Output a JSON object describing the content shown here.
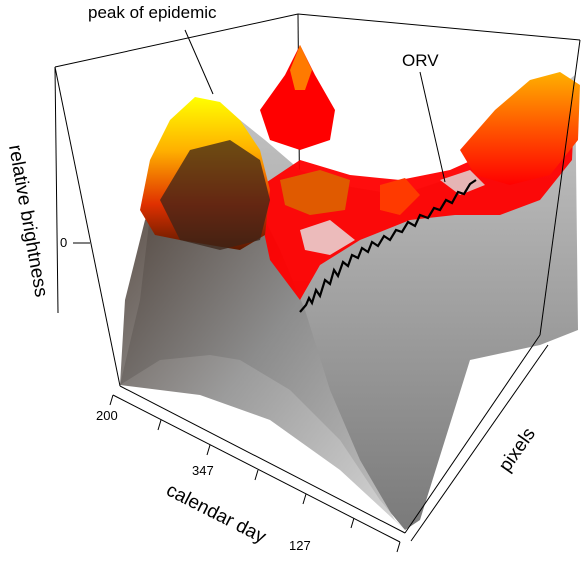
{
  "chart_data": {
    "type": "surface",
    "title": "",
    "xlabel": "calendar day",
    "ylabel": "pixels",
    "zlabel": "relative brightness",
    "x_ticks": [
      "200",
      "347",
      "127"
    ],
    "z_ticks": [
      "0"
    ],
    "annotations": [
      "peak of epidemic",
      "ORV"
    ],
    "colormap": [
      "#e0e0e0",
      "#909090",
      "#5a2a10",
      "#cc2200",
      "#ff0000",
      "#ff6600",
      "#ffcc00",
      "#ffff00"
    ],
    "box": true,
    "grid": false
  }
}
